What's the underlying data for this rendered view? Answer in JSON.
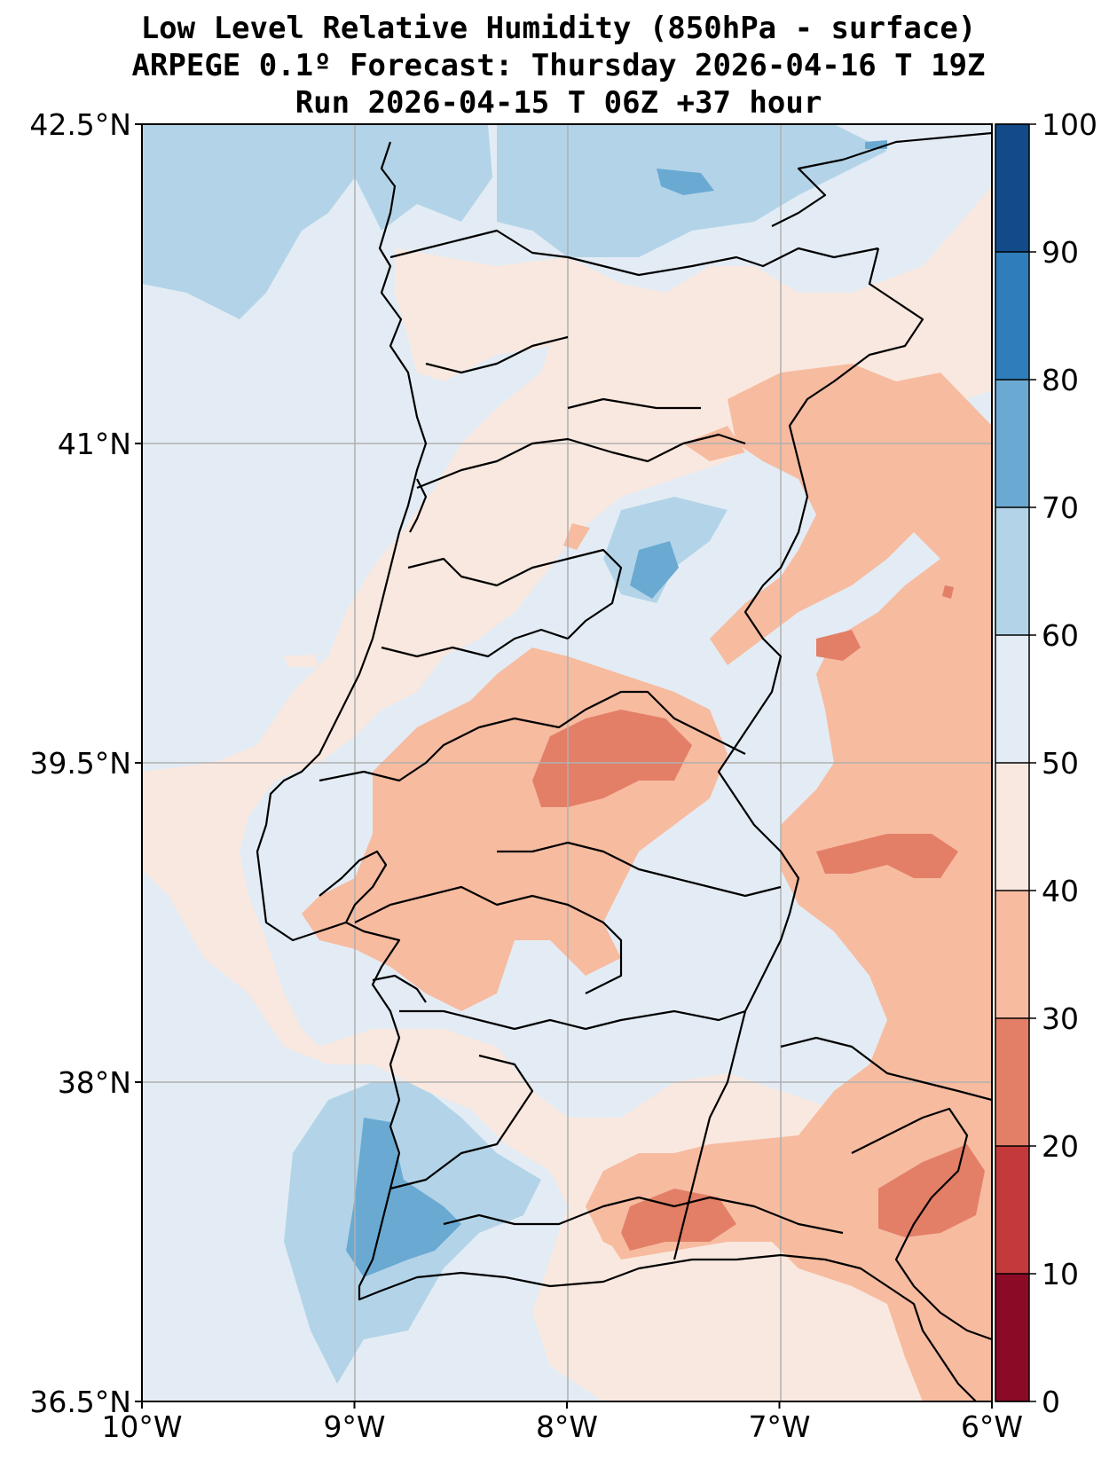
{
  "title": {
    "line1": "Low Level Relative Humidity (850hPa - surface)",
    "line2": "ARPEGE 0.1º Forecast: Thursday 2026-04-16 T 19Z",
    "line3": "Run 2026-04-15 T 06Z +37 hour"
  },
  "map": {
    "lon_range": [
      -10,
      -6
    ],
    "lat_range": [
      36.5,
      42.5
    ],
    "x_ticks": [
      {
        "lon": -10,
        "label": "10°W"
      },
      {
        "lon": -9,
        "label": "9°W"
      },
      {
        "lon": -8,
        "label": "8°W"
      },
      {
        "lon": -7,
        "label": "7°W"
      },
      {
        "lon": -6,
        "label": "6°W"
      }
    ],
    "y_ticks": [
      {
        "lat": 42.5,
        "label": "42.5°N"
      },
      {
        "lat": 41,
        "label": "41°N"
      },
      {
        "lat": 39.5,
        "label": "39.5°N"
      },
      {
        "lat": 38,
        "label": "38°N"
      },
      {
        "lat": 36.5,
        "label": "36.5°N"
      }
    ]
  },
  "colorbar": {
    "levels": [
      {
        "from": 0,
        "to": 10,
        "color": "#8b0a26"
      },
      {
        "from": 10,
        "to": 20,
        "color": "#c43a3a"
      },
      {
        "from": 20,
        "to": 30,
        "color": "#e37f67"
      },
      {
        "from": 30,
        "to": 40,
        "color": "#f7bba0"
      },
      {
        "from": 40,
        "to": 50,
        "color": "#f9e8df"
      },
      {
        "from": 50,
        "to": 60,
        "color": "#e3ecf4"
      },
      {
        "from": 60,
        "to": 70,
        "color": "#b3d4e8"
      },
      {
        "from": 70,
        "to": 80,
        "color": "#6aaad2"
      },
      {
        "from": 80,
        "to": 90,
        "color": "#2f7ebb"
      },
      {
        "from": 90,
        "to": 100,
        "color": "#134b89"
      }
    ],
    "tick_labels": [
      "0",
      "10",
      "20",
      "30",
      "40",
      "50",
      "60",
      "70",
      "80",
      "90",
      "100"
    ]
  }
}
